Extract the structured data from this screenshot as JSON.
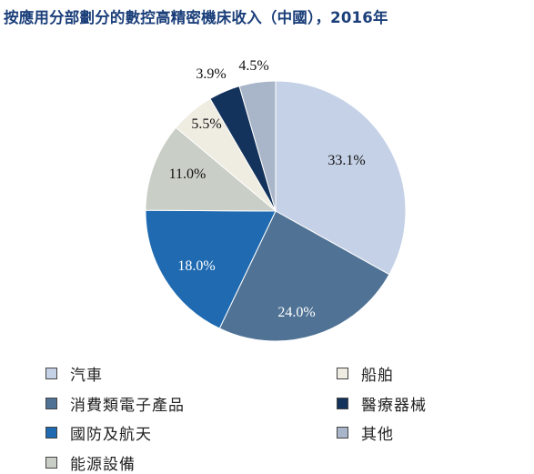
{
  "chart_data": {
    "type": "pie",
    "title": "按應用分部劃分的數控高精密機床收入（中國），2016年",
    "slices": [
      {
        "label": "汽車",
        "value": 33.1,
        "display": "33.1%",
        "color": "#c5d1e6",
        "text_color": "#111111"
      },
      {
        "label": "消費類電子產品",
        "value": 24.0,
        "display": "24.0%",
        "color": "#4f7295",
        "text_color": "#ffffff"
      },
      {
        "label": "國防及航天",
        "value": 18.0,
        "display": "18.0%",
        "color": "#1f6ab1",
        "text_color": "#ffffff"
      },
      {
        "label": "能源設備",
        "value": 11.0,
        "display": "11.0%",
        "color": "#c9cec6",
        "text_color": "#111111"
      },
      {
        "label": "船舶",
        "value": 5.5,
        "display": "5.5%",
        "color": "#efece1",
        "text_color": "#111111"
      },
      {
        "label": "醫療器械",
        "value": 3.9,
        "display": "3.9%",
        "color": "#14335c",
        "text_color": "#111111"
      },
      {
        "label": "其他",
        "value": 4.5,
        "display": "4.5%",
        "color": "#a9b6c9",
        "text_color": "#111111"
      }
    ],
    "legend_order": [
      "汽車",
      "消費類電子產品",
      "國防及航天",
      "能源設備",
      "船舶",
      "醫療器械",
      "其他"
    ]
  }
}
